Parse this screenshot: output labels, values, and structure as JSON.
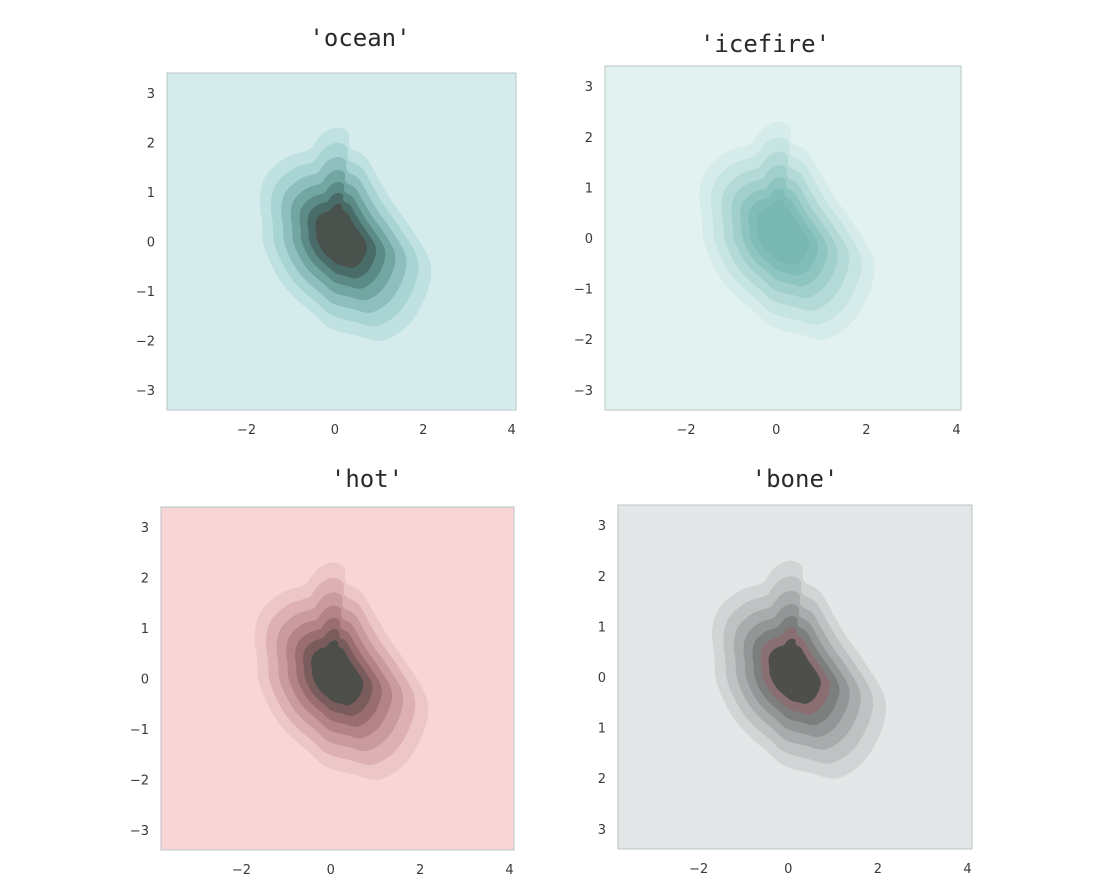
{
  "chart_data": [
    {
      "type": "heatmap",
      "subtype": "kde-filled-contour",
      "title": "'ocean'",
      "xlabel": "",
      "ylabel": "",
      "xlim": [
        -3.8,
        4.1
      ],
      "ylim": [
        -3.4,
        3.4
      ],
      "xticks": [
        "-2",
        "0",
        "2",
        "4"
      ],
      "yticks": [
        "3",
        "2",
        "1",
        "0",
        "-1",
        "-2",
        "-3"
      ],
      "grid": false,
      "colors": {
        "background": "#d6ecec",
        "levels": [
          "#bfe1e1",
          "#a8d4d3",
          "#8ebfbe",
          "#72a6a3",
          "#5b8a87",
          "#4a6c68",
          "#4a524e"
        ]
      }
    },
    {
      "type": "heatmap",
      "subtype": "kde-filled-contour",
      "title": "'icefire'",
      "xlabel": "",
      "ylabel": "",
      "xlim": [
        -3.8,
        4.1
      ],
      "ylim": [
        -3.4,
        3.4
      ],
      "xticks": [
        "-2",
        "0",
        "2",
        "4"
      ],
      "yticks": [
        "3",
        "2",
        "1",
        "0",
        "-1",
        "-2",
        "-3"
      ],
      "grid": false,
      "colors": {
        "background": "#e2f2f1",
        "levels": [
          "#d5ecea",
          "#c6e4e2",
          "#b4dad8",
          "#a1cfcc",
          "#8ec5c1",
          "#80bdb8",
          "#79b8b2"
        ]
      }
    },
    {
      "type": "heatmap",
      "subtype": "kde-filled-contour",
      "title": "'hot'",
      "xlabel": "",
      "ylabel": "",
      "xlim": [
        -3.8,
        4.1
      ],
      "ylim": [
        -3.4,
        3.4
      ],
      "xticks": [
        "-2",
        "0",
        "2",
        "4"
      ],
      "yticks": [
        "3",
        "2",
        "1",
        "0",
        "-1",
        "-2",
        "-3"
      ],
      "grid": false,
      "colors": {
        "background": "#f9d6d6",
        "levels": [
          "#ecc6c8",
          "#ddb0b4",
          "#c99a9e",
          "#b38388",
          "#9a6d71",
          "#7a5c5c",
          "#4d4e49"
        ]
      }
    },
    {
      "type": "heatmap",
      "subtype": "kde-filled-contour",
      "title": "'bone'",
      "xlabel": "",
      "ylabel": "",
      "xlim": [
        -3.8,
        4.1
      ],
      "ylim": [
        -3.4,
        3.4
      ],
      "xticks": [
        "-2",
        "0",
        "2",
        "4"
      ],
      "yticks": [
        "3",
        "2",
        "1",
        "0",
        "1",
        "2",
        "3"
      ],
      "grid": false,
      "colors": {
        "background": "#e4e6e7",
        "levels": [
          "#d2d4d5",
          "#bfc1c2",
          "#a9abac",
          "#939596",
          "#7d7f7f",
          "#8a6f72",
          "#4e4f4b"
        ]
      }
    }
  ]
}
